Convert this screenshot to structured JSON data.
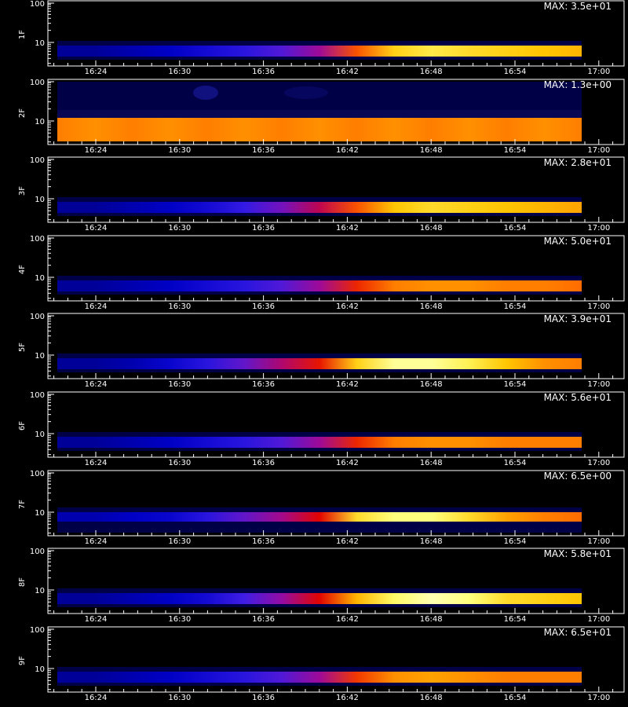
{
  "chart_data": {
    "type": "heatmap",
    "colors": {
      "background": "#000000",
      "frame": "#ffffff",
      "text": "#ffffff",
      "colormap": [
        "#000000",
        "#00004a",
        "#0000c8",
        "#3a1ee8",
        "#9a0aa0",
        "#e00000",
        "#ff6000",
        "#ffc400",
        "#ffff70",
        "#ffffff"
      ]
    },
    "x_ticks": [
      "16:24",
      "16:30",
      "16:36",
      "16:42",
      "16:48",
      "16:54",
      "17:00"
    ],
    "y_ticks": [
      "100",
      "10"
    ],
    "y_scale": "log",
    "xlabel": "",
    "data_extent_x": [
      "16:21",
      "16:57"
    ],
    "panels": [
      {
        "label": "1F",
        "max_label": "MAX: 3.5e+01",
        "band": "low",
        "intensity_profile": [
          0.18,
          0.18,
          0.2,
          0.22,
          0.26,
          0.3,
          0.36,
          0.45,
          0.65,
          0.8,
          0.85,
          0.82,
          0.8,
          0.78,
          0.76
        ]
      },
      {
        "label": "2F",
        "max_label": "MAX: 1.3e+00",
        "band": "wide",
        "intensity_profile": [
          0.7,
          0.72,
          0.7,
          0.72,
          0.7,
          0.72,
          0.7,
          0.72,
          0.7,
          0.72,
          0.7,
          0.72,
          0.7,
          0.72,
          0.7
        ]
      },
      {
        "label": "3F",
        "max_label": "MAX: 2.8e+01",
        "band": "low",
        "intensity_profile": [
          0.18,
          0.18,
          0.2,
          0.22,
          0.26,
          0.32,
          0.4,
          0.5,
          0.65,
          0.78,
          0.82,
          0.8,
          0.78,
          0.76,
          0.74
        ]
      },
      {
        "label": "4F",
        "max_label": "MAX: 5.0e+01",
        "band": "low",
        "intensity_profile": [
          0.18,
          0.18,
          0.2,
          0.22,
          0.26,
          0.3,
          0.36,
          0.45,
          0.6,
          0.7,
          0.72,
          0.72,
          0.7,
          0.7,
          0.68
        ]
      },
      {
        "label": "5F",
        "max_label": "MAX: 3.9e+01",
        "band": "low",
        "intensity_profile": [
          0.18,
          0.18,
          0.2,
          0.24,
          0.3,
          0.38,
          0.48,
          0.58,
          0.8,
          0.92,
          0.92,
          0.86,
          0.78,
          0.72,
          0.7
        ]
      },
      {
        "label": "6F",
        "max_label": "MAX: 5.6e+01",
        "band": "low",
        "intensity_profile": [
          0.18,
          0.18,
          0.2,
          0.22,
          0.26,
          0.3,
          0.36,
          0.45,
          0.6,
          0.7,
          0.72,
          0.72,
          0.7,
          0.7,
          0.7
        ]
      },
      {
        "label": "7F",
        "max_label": "MAX: 6.5e+00",
        "band": "mid",
        "intensity_profile": [
          0.2,
          0.2,
          0.22,
          0.24,
          0.3,
          0.38,
          0.46,
          0.56,
          0.82,
          0.9,
          0.9,
          0.82,
          0.74,
          0.7,
          0.68
        ]
      },
      {
        "label": "8F",
        "max_label": "MAX: 5.8e+01",
        "band": "low",
        "intensity_profile": [
          0.18,
          0.18,
          0.2,
          0.22,
          0.26,
          0.34,
          0.44,
          0.56,
          0.76,
          0.88,
          0.94,
          0.9,
          0.82,
          0.8,
          0.78
        ]
      },
      {
        "label": "9F",
        "max_label": "MAX: 6.5e+01",
        "band": "low",
        "intensity_profile": [
          0.18,
          0.18,
          0.2,
          0.22,
          0.26,
          0.3,
          0.36,
          0.45,
          0.62,
          0.72,
          0.74,
          0.72,
          0.7,
          0.7,
          0.7
        ]
      }
    ]
  }
}
